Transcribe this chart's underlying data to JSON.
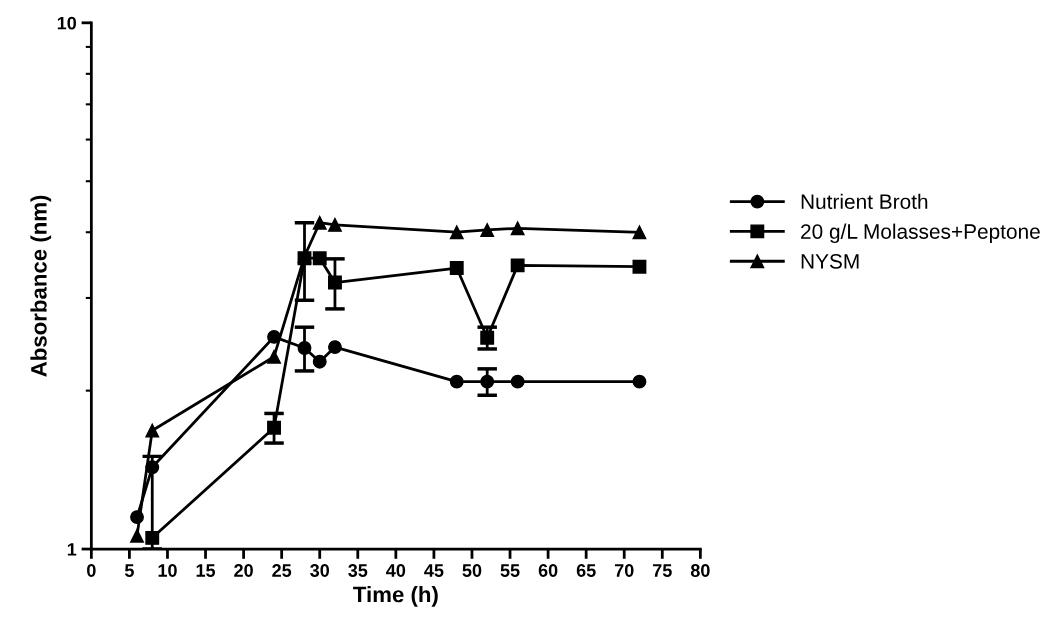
{
  "chart_data": {
    "type": "line",
    "xlabel": "Time (h)",
    "ylabel": "Absorbance (nm)",
    "log": "y",
    "legend": "right",
    "grid": false,
    "xlim": [
      0,
      80
    ],
    "xticks": [
      0,
      5,
      10,
      15,
      20,
      25,
      30,
      35,
      40,
      45,
      50,
      55,
      60,
      65,
      70,
      75,
      80
    ],
    "ylim": [
      1,
      10
    ],
    "yticks": [
      1,
      10
    ],
    "series": [
      {
        "name": "Nutrient Broth",
        "color": "#000000",
        "marker": "circle",
        "x": [
          6,
          8,
          24,
          28,
          30,
          32,
          48,
          52,
          56,
          72
        ],
        "values": [
          1.15,
          1.43,
          2.53,
          2.41,
          2.27,
          2.42,
          2.08,
          2.08,
          2.08,
          2.08
        ],
        "errors": [
          null,
          null,
          null,
          0.23,
          null,
          null,
          null,
          0.12,
          null,
          null
        ]
      },
      {
        "name": "20 g/L Molasses+Peptone",
        "color": "#000000",
        "marker": "square",
        "x": [
          8,
          24,
          28,
          30,
          32,
          48,
          52,
          56,
          72
        ],
        "values": [
          1.05,
          1.7,
          3.57,
          3.57,
          3.21,
          3.42,
          2.52,
          3.46,
          3.44
        ],
        "errors": [
          [
            1.0,
            1.5
          ],
          0.11,
          0.6,
          null,
          0.35,
          null,
          0.12,
          null,
          null
        ]
      },
      {
        "name": "NYSM",
        "color": "#000000",
        "marker": "triangle",
        "x": [
          6,
          8,
          24,
          28,
          30,
          32,
          48,
          52,
          56,
          72
        ],
        "values": [
          1.06,
          1.68,
          2.32,
          3.6,
          4.17,
          4.13,
          4.0,
          4.04,
          4.07,
          4.0
        ]
      }
    ]
  }
}
